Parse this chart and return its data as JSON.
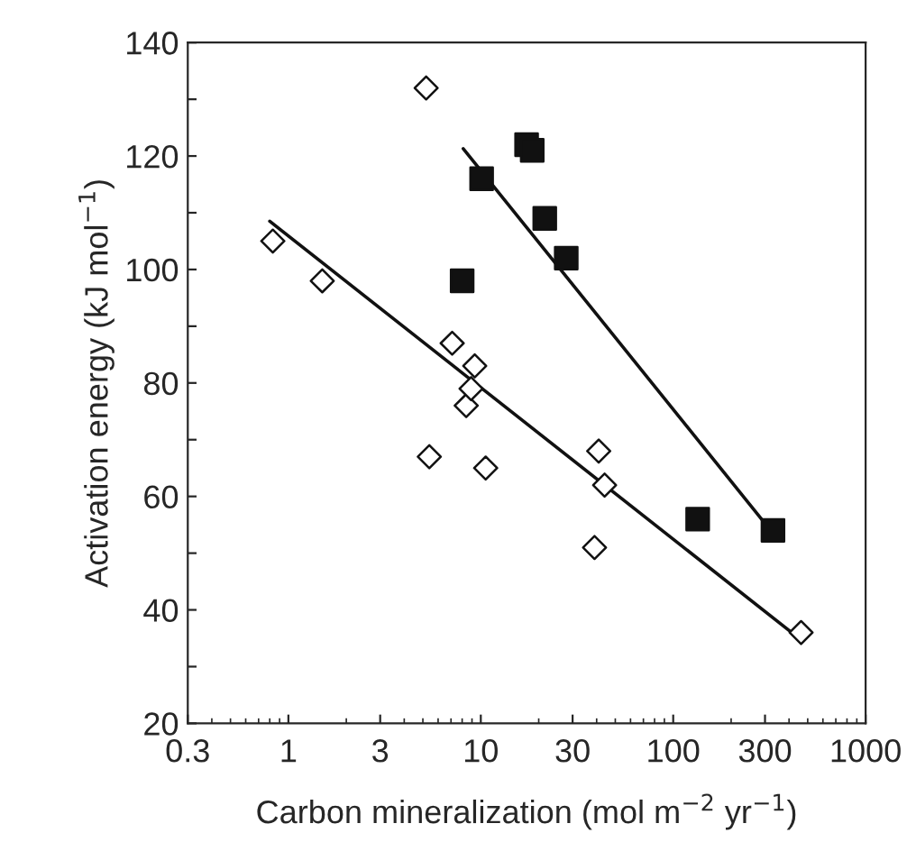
{
  "chart_data": {
    "type": "scatter",
    "xlabel": "Carbon mineralization (mol m$^{−2}$ yr$^{−1}$)",
    "ylabel": "Activation energy (kJ mol$^{−1}$)",
    "log": "x",
    "xlim": [
      0.3,
      1000
    ],
    "xticks": [
      0.3,
      1,
      3,
      10,
      30,
      100,
      300,
      1000
    ],
    "ylim": [
      20,
      140
    ],
    "yticks": [
      20,
      {
        "value": 30,
        "label": null
      },
      40,
      {
        "value": 50,
        "label": null
      },
      60,
      {
        "value": 70,
        "label": null
      },
      80,
      {
        "value": 90,
        "label": null
      },
      100,
      {
        "value": 110,
        "label": null
      },
      120,
      {
        "value": 130,
        "label": null
      },
      140
    ],
    "grid": false,
    "legend": false,
    "series": [
      {
        "marker": "diamond",
        "color": "#ffffff",
        "x": [
          0.83,
          1.5,
          5.2,
          5.4,
          7.1,
          8.4,
          8.9,
          9.3,
          10.6,
          41,
          44,
          39,
          462
        ],
        "values": [
          105,
          98,
          132,
          67,
          87,
          76,
          79,
          83,
          65,
          68,
          62,
          51,
          36
        ]
      },
      {
        "marker": "square",
        "color": "#111111",
        "x": [
          8.0,
          10.1,
          17.3,
          18.5,
          21.5,
          27.8,
          134,
          330
        ],
        "values": [
          98,
          116,
          122,
          121,
          109,
          102,
          56,
          54
        ]
      },
      {
        "type": "line",
        "marker": "none",
        "color": "#111111",
        "x": [
          0.8,
          470
        ],
        "values": [
          108.5,
          34.5
        ]
      },
      {
        "type": "line",
        "marker": "none",
        "color": "#111111",
        "x": [
          8.1,
          330
        ],
        "values": [
          121.3,
          53.5
        ]
      }
    ]
  }
}
